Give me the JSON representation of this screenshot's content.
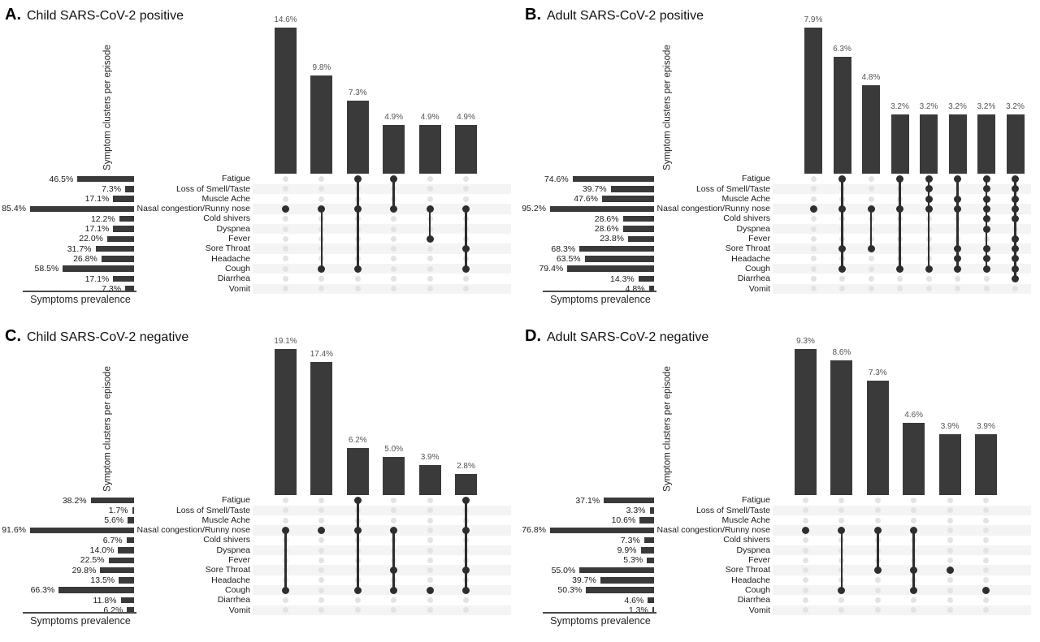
{
  "chart_data": [
    {
      "type": "upset",
      "panel_letter": "A.",
      "title": "Child SARS-CoV-2 positive",
      "ylabel": "Symptom clusters per episode",
      "xlabel": "Symptoms prevalence",
      "categories": [
        "Fatigue",
        "Loss of Smell/Taste",
        "Muscle Ache",
        "Nasal congestion/Runny nose",
        "Cold shivers",
        "Dyspnea",
        "Fever",
        "Sore Throat",
        "Headache",
        "Cough",
        "Diarrhea",
        "Vomit"
      ],
      "prevalence_pct": [
        46.5,
        7.3,
        17.1,
        85.4,
        12.2,
        17.1,
        22.0,
        31.7,
        26.8,
        58.5,
        17.1,
        7.3
      ],
      "prevalence_labels": [
        "46.5%",
        "7.3%",
        "17.1%",
        "85.4%",
        "12.2%",
        "17.1%",
        "22.0%",
        "31.7%",
        "26.8%",
        "58.5%",
        "17.1%",
        "7.3%"
      ],
      "clusters": [
        {
          "pct": 14.6,
          "label": "14.6%",
          "symptoms": [
            "Nasal congestion/Runny nose"
          ]
        },
        {
          "pct": 9.8,
          "label": "9.8%",
          "symptoms": [
            "Nasal congestion/Runny nose",
            "Cough"
          ]
        },
        {
          "pct": 7.3,
          "label": "7.3%",
          "symptoms": [
            "Fatigue",
            "Nasal congestion/Runny nose",
            "Cough"
          ]
        },
        {
          "pct": 4.9,
          "label": "4.9%",
          "symptoms": [
            "Fatigue",
            "Nasal congestion/Runny nose"
          ]
        },
        {
          "pct": 4.9,
          "label": "4.9%",
          "symptoms": [
            "Nasal congestion/Runny nose",
            "Fever"
          ]
        },
        {
          "pct": 4.9,
          "label": "4.9%",
          "symptoms": [
            "Nasal congestion/Runny nose",
            "Sore Throat",
            "Cough"
          ]
        }
      ]
    },
    {
      "type": "upset",
      "panel_letter": "B.",
      "title": "Adult SARS-CoV-2 positive",
      "ylabel": "Symptom clusters per episode",
      "xlabel": "Symptoms prevalence",
      "categories": [
        "Fatigue",
        "Loss of Smell/Taste",
        "Muscle Ache",
        "Nasal congestion/Runny nose",
        "Cold shivers",
        "Dyspnea",
        "Fever",
        "Sore Throat",
        "Headache",
        "Cough",
        "Diarrhea",
        "Vomit"
      ],
      "prevalence_pct": [
        74.6,
        39.7,
        47.6,
        95.2,
        28.6,
        28.6,
        23.8,
        68.3,
        63.5,
        79.4,
        14.3,
        4.8
      ],
      "prevalence_labels": [
        "74.6%",
        "39.7%",
        "47.6%",
        "95.2%",
        "28.6%",
        "28.6%",
        "23.8%",
        "68.3%",
        "63.5%",
        "79.4%",
        "14.3%",
        "4.8%"
      ],
      "clusters": [
        {
          "pct": 7.9,
          "label": "7.9%",
          "symptoms": [
            "Nasal congestion/Runny nose"
          ]
        },
        {
          "pct": 6.3,
          "label": "6.3%",
          "symptoms": [
            "Fatigue",
            "Nasal congestion/Runny nose",
            "Sore Throat",
            "Cough"
          ]
        },
        {
          "pct": 4.8,
          "label": "4.8%",
          "symptoms": [
            "Nasal congestion/Runny nose",
            "Sore Throat"
          ]
        },
        {
          "pct": 3.2,
          "label": "3.2%",
          "symptoms": [
            "Fatigue",
            "Nasal congestion/Runny nose",
            "Cough"
          ]
        },
        {
          "pct": 3.2,
          "label": "3.2%",
          "symptoms": [
            "Fatigue",
            "Loss of Smell/Taste",
            "Muscle Ache",
            "Nasal congestion/Runny nose",
            "Cough"
          ]
        },
        {
          "pct": 3.2,
          "label": "3.2%",
          "symptoms": [
            "Fatigue",
            "Muscle Ache",
            "Nasal congestion/Runny nose",
            "Sore Throat",
            "Headache",
            "Cough"
          ]
        },
        {
          "pct": 3.2,
          "label": "3.2%",
          "symptoms": [
            "Fatigue",
            "Loss of Smell/Taste",
            "Muscle Ache",
            "Nasal congestion/Runny nose",
            "Cold shivers",
            "Dyspnea",
            "Sore Throat",
            "Headache",
            "Cough"
          ]
        },
        {
          "pct": 3.2,
          "label": "3.2%",
          "symptoms": [
            "Fatigue",
            "Loss of Smell/Taste",
            "Muscle Ache",
            "Nasal congestion/Runny nose",
            "Cold shivers",
            "Fever",
            "Sore Throat",
            "Headache",
            "Cough",
            "Diarrhea"
          ]
        }
      ]
    },
    {
      "type": "upset",
      "panel_letter": "C.",
      "title": "Child SARS-CoV-2 negative",
      "ylabel": "Symptom clusters per episode",
      "xlabel": "Symptoms prevalence",
      "categories": [
        "Fatigue",
        "Loss of Smell/Taste",
        "Muscle Ache",
        "Nasal congestion/Runny nose",
        "Cold shivers",
        "Dyspnea",
        "Fever",
        "Sore Throat",
        "Headache",
        "Cough",
        "Diarrhea",
        "Vomit"
      ],
      "prevalence_pct": [
        38.2,
        1.7,
        5.6,
        91.6,
        6.7,
        14.0,
        22.5,
        29.8,
        13.5,
        66.3,
        11.8,
        6.2
      ],
      "prevalence_labels": [
        "38.2%",
        "1.7%",
        "5.6%",
        "91.6%",
        "6.7%",
        "14.0%",
        "22.5%",
        "29.8%",
        "13.5%",
        "66.3%",
        "11.8%",
        "6.2%"
      ],
      "clusters": [
        {
          "pct": 19.1,
          "label": "19.1%",
          "symptoms": [
            "Nasal congestion/Runny nose",
            "Cough"
          ]
        },
        {
          "pct": 17.4,
          "label": "17.4%",
          "symptoms": [
            "Nasal congestion/Runny nose"
          ]
        },
        {
          "pct": 6.2,
          "label": "6.2%",
          "symptoms": [
            "Fatigue",
            "Nasal congestion/Runny nose",
            "Cough"
          ]
        },
        {
          "pct": 5.0,
          "label": "5.0%",
          "symptoms": [
            "Nasal congestion/Runny nose",
            "Sore Throat",
            "Cough"
          ]
        },
        {
          "pct": 3.9,
          "label": "3.9%",
          "symptoms": [
            "Cough"
          ]
        },
        {
          "pct": 2.8,
          "label": "2.8%",
          "symptoms": [
            "Fatigue",
            "Nasal congestion/Runny nose",
            "Sore Throat",
            "Cough"
          ]
        }
      ]
    },
    {
      "type": "upset",
      "panel_letter": "D.",
      "title": "Adult SARS-CoV-2 negative",
      "ylabel": "Symptom clusters per episode",
      "xlabel": "Symptoms prevalence",
      "categories": [
        "Fatigue",
        "Loss of Smell/Taste",
        "Muscle Ache",
        "Nasal congestion/Runny nose",
        "Cold shivers",
        "Dyspnea",
        "Fever",
        "Sore Throat",
        "Headache",
        "Cough",
        "Diarrhea",
        "Vomit"
      ],
      "prevalence_pct": [
        37.1,
        3.3,
        10.6,
        76.8,
        7.3,
        9.9,
        5.3,
        55.0,
        39.7,
        50.3,
        4.6,
        1.3
      ],
      "prevalence_labels": [
        "37.1%",
        "3.3%",
        "10.6%",
        "76.8%",
        "7.3%",
        "9.9%",
        "5.3%",
        "55.0%",
        "39.7%",
        "50.3%",
        "4.6%",
        "1.3%"
      ],
      "clusters": [
        {
          "pct": 9.3,
          "label": "9.3%",
          "symptoms": [
            "Nasal congestion/Runny nose"
          ]
        },
        {
          "pct": 8.6,
          "label": "8.6%",
          "symptoms": [
            "Nasal congestion/Runny nose",
            "Cough"
          ]
        },
        {
          "pct": 7.3,
          "label": "7.3%",
          "symptoms": [
            "Nasal congestion/Runny nose",
            "Sore Throat"
          ]
        },
        {
          "pct": 4.6,
          "label": "4.6%",
          "symptoms": [
            "Nasal congestion/Runny nose",
            "Sore Throat",
            "Cough"
          ]
        },
        {
          "pct": 3.9,
          "label": "3.9%",
          "symptoms": [
            "Sore Throat"
          ]
        },
        {
          "pct": 3.9,
          "label": "3.9%",
          "symptoms": [
            "Cough"
          ]
        }
      ]
    }
  ],
  "colors": {
    "bar": "#3a3a3a",
    "active_dot": "#2e2e2e",
    "inactive_dot": "#e3e3e3",
    "row_stripe": "#f4f4f4",
    "value_label": "#555555",
    "text": "#1a1a1a",
    "background": "#ffffff"
  }
}
